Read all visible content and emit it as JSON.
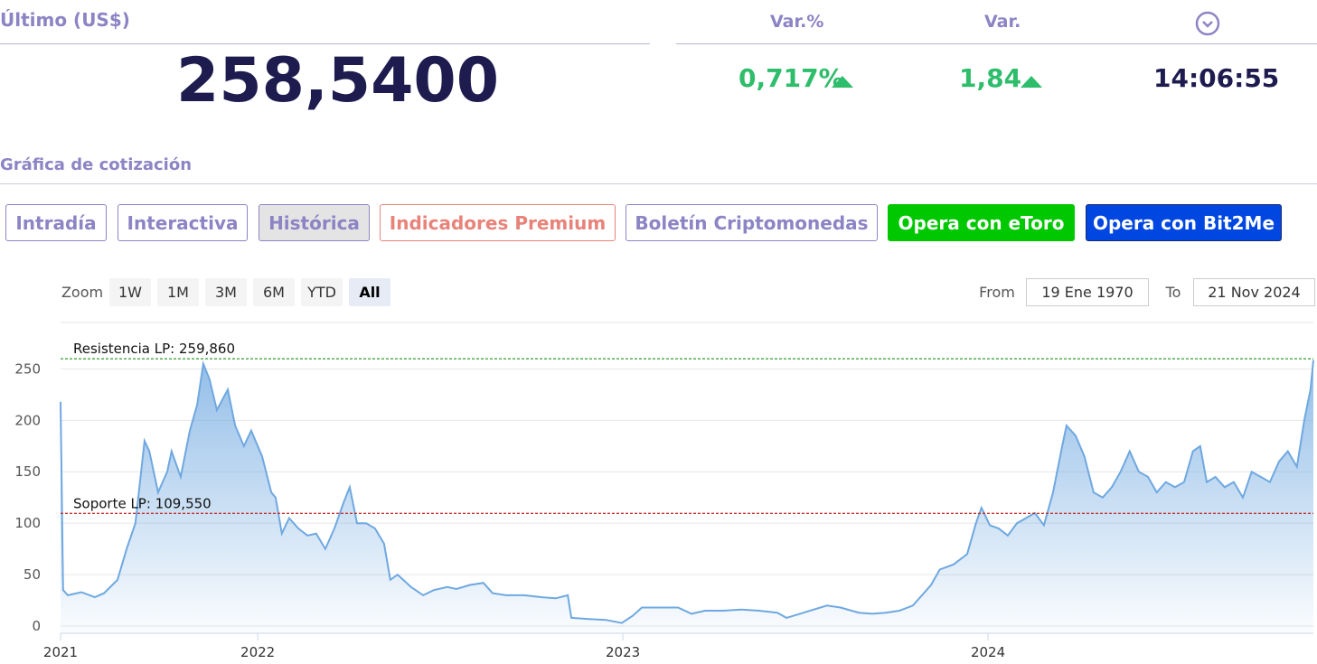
{
  "header": {
    "last_label": "Último (US$)",
    "last_value": "258,5400",
    "change_pct_label": "Var.%",
    "change_pct": "0,717%",
    "change_label": "Var.",
    "change": "1,84",
    "time": "14:06:55"
  },
  "section_title": "Gráfica de cotización",
  "tabs": [
    "Intradía",
    "Interactiva",
    "Histórica",
    "Indicadores Premium",
    "Boletín Criptomonedas",
    "Opera con eToro",
    "Opera con Bit2Me"
  ],
  "range_selector": {
    "zoom_label": "Zoom",
    "buttons": [
      "1W",
      "1M",
      "3M",
      "6M",
      "YTD",
      "All"
    ],
    "from_label": "From",
    "from": "19 Ene 1970",
    "to_label": "To",
    "to": "21 Nov 2024"
  },
  "chart_data": {
    "type": "area",
    "x": [
      2021.46,
      2021.467,
      2021.48,
      2021.517,
      2021.554,
      2021.579,
      2021.616,
      2021.641,
      2021.665,
      2021.69,
      2021.703,
      2021.727,
      2021.752,
      2021.764,
      2021.789,
      2021.814,
      2021.834,
      2021.851,
      2021.868,
      2021.888,
      2021.918,
      2021.938,
      2021.962,
      2021.982,
      2022.012,
      2022.037,
      2022.049,
      2022.066,
      2022.086,
      2022.111,
      2022.136,
      2022.16,
      2022.185,
      2022.21,
      2022.235,
      2022.252,
      2022.272,
      2022.297,
      2022.321,
      2022.346,
      2022.363,
      2022.383,
      2022.42,
      2022.453,
      2022.482,
      2022.519,
      2022.544,
      2022.581,
      2022.618,
      2022.643,
      2022.68,
      2022.73,
      2022.779,
      2022.816,
      2022.849,
      2022.859,
      2022.903,
      2022.953,
      2022.997,
      2023.027,
      2023.052,
      2023.101,
      2023.151,
      2023.188,
      2023.225,
      2023.274,
      2023.324,
      2023.373,
      2023.423,
      2023.448,
      2023.485,
      2023.522,
      2023.559,
      2023.596,
      2023.646,
      2023.683,
      2023.72,
      2023.757,
      2023.794,
      2023.819,
      2023.844,
      2023.868,
      2023.906,
      2023.943,
      2023.967,
      2023.982,
      2024.005,
      2024.029,
      2024.054,
      2024.079,
      2024.104,
      2024.128,
      2024.153,
      2024.178,
      2024.203,
      2024.215,
      2024.24,
      2024.264,
      2024.289,
      2024.314,
      2024.339,
      2024.363,
      2024.388,
      2024.413,
      2024.438,
      2024.462,
      2024.487,
      2024.512,
      2024.537,
      2024.561,
      2024.581,
      2024.599,
      2024.623,
      2024.648,
      2024.673,
      2024.698,
      2024.722,
      2024.747,
      2024.772,
      2024.797,
      2024.821,
      2024.846,
      2024.866,
      2024.883,
      2024.891
    ],
    "series": [
      {
        "color": "#6fa8e0",
        "values": [
          218,
          35,
          30,
          33,
          28,
          32,
          45,
          75,
          100,
          180,
          170,
          130,
          150,
          170,
          145,
          190,
          215,
          255,
          240,
          210,
          230,
          195,
          175,
          190,
          165,
          130,
          125,
          90,
          105,
          95,
          88,
          90,
          75,
          95,
          120,
          135,
          100,
          100,
          95,
          80,
          45,
          50,
          38,
          30,
          35,
          38,
          36,
          40,
          42,
          32,
          30,
          30,
          28,
          27,
          30,
          8,
          7,
          6,
          3,
          10,
          18,
          18,
          18,
          12,
          15,
          15,
          16,
          15,
          13,
          8,
          12,
          16,
          20,
          18,
          13,
          12,
          13,
          15,
          20,
          30,
          40,
          55,
          60,
          70,
          100,
          115,
          98,
          95,
          88,
          100,
          105,
          110,
          98,
          130,
          175,
          195,
          185,
          165,
          130,
          125,
          135,
          150,
          170,
          150,
          145,
          130,
          140,
          135,
          140,
          170,
          175,
          140,
          145,
          135,
          140,
          125,
          150,
          145,
          140,
          160,
          170,
          155,
          200,
          230,
          258.54
        ]
      }
    ],
    "xlim": [
      2021.46,
      2024.891
    ],
    "xticks": [
      {
        "value": 2021.46,
        "label": "2021"
      },
      2022,
      2023,
      2024
    ],
    "ylim": [
      -7,
      260
    ],
    "yticks": [
      0,
      50,
      100,
      150,
      200,
      250
    ],
    "grid": true,
    "annotations": [
      {
        "label": "Resistencia LP: 259,860",
        "value": 259.86,
        "color": "#2e9b2e"
      },
      {
        "label": "Soporte LP: 109,550",
        "value": 109.55,
        "color": "#c0302b"
      }
    ]
  }
}
